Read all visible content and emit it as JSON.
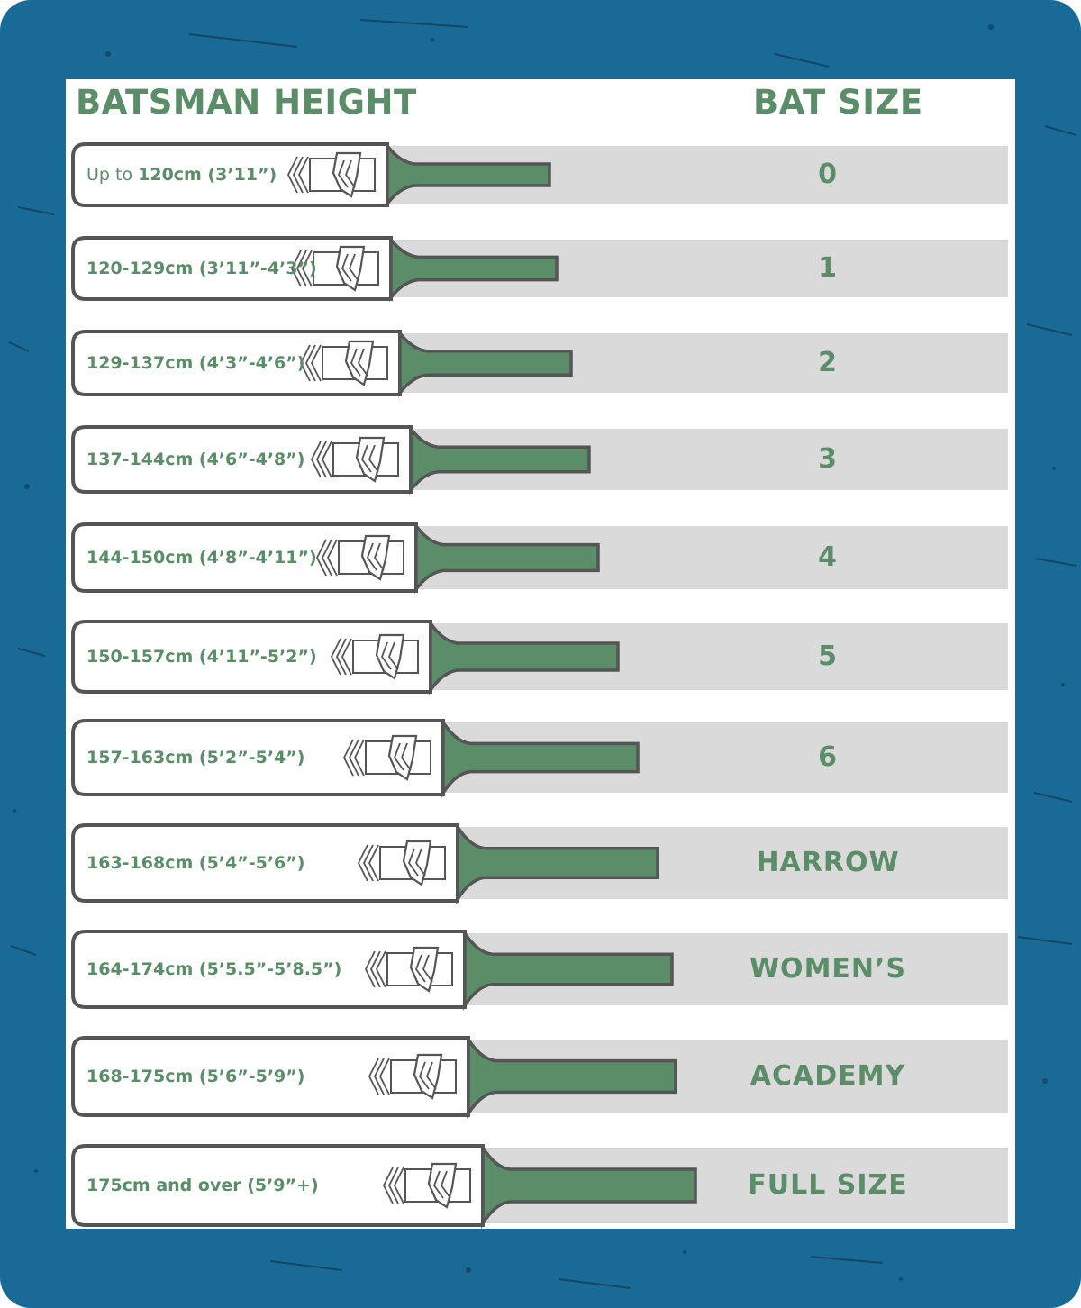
{
  "colors": {
    "background": "#1a6a98",
    "accent_green": "#5b8d68",
    "stripe_grey": "#dadada",
    "outline": "#555555"
  },
  "headers": {
    "height": "BATSMAN HEIGHT",
    "size": "BAT SIZE"
  },
  "rows": [
    {
      "prefix": "Up to ",
      "height": "120cm (3’11”)",
      "size": "0"
    },
    {
      "prefix": "",
      "height": "120-129cm (3’11”-4’3”)",
      "size": "1"
    },
    {
      "prefix": "",
      "height": "129-137cm (4’3”-4’6”)",
      "size": "2"
    },
    {
      "prefix": "",
      "height": "137-144cm (4’6”-4’8”)",
      "size": "3"
    },
    {
      "prefix": "",
      "height": "144-150cm (4’8”-4’11”)",
      "size": "4"
    },
    {
      "prefix": "",
      "height": "150-157cm (4’11”-5’2”)",
      "size": "5"
    },
    {
      "prefix": "",
      "height": "157-163cm (5’2”-5’4”)",
      "size": "6"
    },
    {
      "prefix": "",
      "height": "163-168cm (5’4”-5’6”)",
      "size": "HARROW"
    },
    {
      "prefix": "",
      "height": "164-174cm (5’5.5”-5’8.5”)",
      "size": "WOMEN’S"
    },
    {
      "prefix": "",
      "height": "168-175cm (5’6”-5’9”)",
      "size": "ACADEMY"
    },
    {
      "prefix": "",
      "height": "175cm and over (5’9”+)",
      "size": "FULL SIZE"
    }
  ],
  "icons": {
    "bat": "cricket-bat-icon",
    "logo": "brand-logo-icon"
  }
}
